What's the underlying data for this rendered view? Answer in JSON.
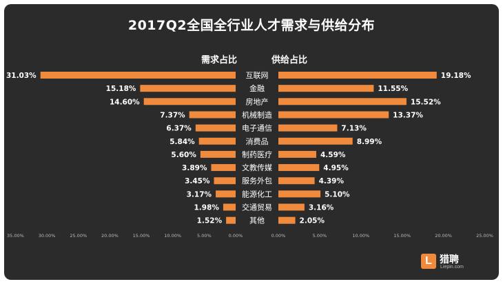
{
  "chart_data": {
    "type": "bar",
    "title": "2017Q2全国全行业人才需求与供给分布",
    "left_label": "需求占比",
    "right_label": "供给占比",
    "categories": [
      "互联网",
      "金融",
      "房地产",
      "机械制造",
      "电子通信",
      "消费品",
      "制药医疗",
      "文教传媒",
      "服务外包",
      "能源化工",
      "交通贸易",
      "其他"
    ],
    "series": [
      {
        "name": "需求占比",
        "values": [
          31.03,
          15.18,
          14.6,
          7.37,
          6.37,
          5.84,
          5.6,
          3.89,
          3.45,
          3.17,
          1.98,
          1.52
        ]
      },
      {
        "name": "供给占比",
        "values": [
          19.18,
          11.55,
          15.52,
          13.37,
          7.13,
          8.99,
          4.59,
          4.95,
          4.39,
          5.1,
          3.16,
          2.05
        ]
      }
    ],
    "left_axis_ticks": [
      "35.00%",
      "30.00%",
      "25.00%",
      "20.00%",
      "15.00%",
      "10.00%",
      "5.00%",
      "0.00%"
    ],
    "right_axis_ticks": [
      "0.00%",
      "5.00%",
      "10.00%",
      "15.00%",
      "20.00%",
      "25.00%"
    ],
    "left_xlim": [
      35,
      0
    ],
    "right_xlim": [
      0,
      25
    ],
    "bar_color": "#f08a3c"
  },
  "logo": {
    "mark": "L",
    "name": "猎聘",
    "url": "Liepin.com"
  }
}
